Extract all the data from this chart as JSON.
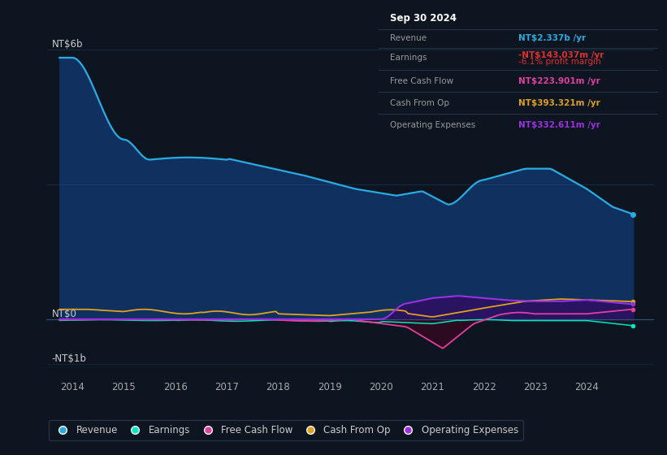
{
  "bg_color": "#0d1520",
  "plot_bg_color": "#0d1520",
  "revenue_color": "#29abe2",
  "earnings_color": "#00e5c0",
  "free_cash_flow_color": "#e040a0",
  "cash_from_op_color": "#e0a020",
  "operating_expenses_color": "#9b30e0",
  "revenue_fill_color": "#0d3660",
  "xlim": [
    2013.5,
    2025.3
  ],
  "ylim": [
    -1.3,
    6.8
  ],
  "xticks": [
    2014,
    2015,
    2016,
    2017,
    2018,
    2019,
    2020,
    2021,
    2022,
    2023,
    2024
  ],
  "legend_labels": [
    "Revenue",
    "Earnings",
    "Free Cash Flow",
    "Cash From Op",
    "Operating Expenses"
  ],
  "legend_colors": [
    "#29abe2",
    "#00e5c0",
    "#e040a0",
    "#e0a020",
    "#9b30e0"
  ],
  "info_box": {
    "date": "Sep 30 2024",
    "revenue_val": "NT$2.337b",
    "revenue_color": "#29abe2",
    "earnings_val": "-NT$143.037m",
    "earnings_color": "#e03030",
    "earnings_margin": "-6.1%",
    "earnings_margin_color": "#e03030",
    "fcf_val": "NT$223.901m",
    "fcf_color": "#e040a0",
    "cashop_val": "NT$393.321m",
    "cashop_color": "#e0a020",
    "opex_val": "NT$332.611m",
    "opex_color": "#9b30e0"
  }
}
